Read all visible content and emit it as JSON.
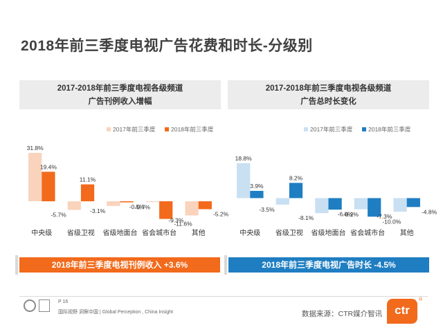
{
  "page_title": "2018年前三季度电视广告花费和时长-分级别",
  "panels": [
    {
      "heading_line1": "2017-2018年前三季度电视各级频道",
      "heading_line2": "广告刊例收入增幅"
    },
    {
      "heading_line1": "2017-2018年前三季度电视各级频道",
      "heading_line2": "广告总时长变化"
    }
  ],
  "colors": {
    "orange_light": "#fad3bd",
    "orange_dark": "#f26a1b",
    "blue_light": "#c9dff2",
    "blue_dark": "#1f7ec2",
    "banner_orange": "#f26a1b",
    "banner_blue": "#1f7ec2"
  },
  "chart_data": [
    {
      "type": "bar",
      "categories": [
        "中央级",
        "省级卫视",
        "省级地面台",
        "省会城市台",
        "其他"
      ],
      "series": [
        {
          "name": "2017年前三季度",
          "values": [
            31.8,
            -5.7,
            -3.1,
            -0.5,
            -9.3
          ]
        },
        {
          "name": "2018年前三季度",
          "values": [
            19.4,
            11.1,
            -0.7,
            -11.6,
            -5.2
          ]
        }
      ],
      "value_labels": [
        [
          "31.8%",
          "-5.7%",
          "-3.1%",
          "-0.5%",
          "-9.3%"
        ],
        [
          "19.4%",
          "11.1%",
          "-0.7%",
          "-11.6%",
          "-5.2%"
        ]
      ],
      "ylim": [
        -15,
        35
      ],
      "legend": "top-right"
    },
    {
      "type": "bar",
      "categories": [
        "中央级",
        "省级卫视",
        "省级地面台",
        "省会城市台",
        "其他"
      ],
      "series": [
        {
          "name": "2017年前三季度",
          "values": [
            18.8,
            -3.5,
            -8.1,
            -6.0,
            -7.3
          ]
        },
        {
          "name": "2018年前三季度",
          "values": [
            3.9,
            8.2,
            -6.2,
            -10.0,
            -4.8
          ]
        }
      ],
      "value_labels": [
        [
          "18.8%",
          "-3.5%",
          "-8.1%",
          "-6.0%",
          "-7.3%"
        ],
        [
          "3.9%",
          "8.2%",
          "-6.2%",
          "-10.0%",
          "-4.8%"
        ]
      ],
      "ylim": [
        -14,
        24
      ],
      "legend": "top-right"
    }
  ],
  "banners": {
    "left": "2018年前三季度电视刊例收入 +3.6%",
    "right": "2018年前三季度电视广告时长 -4.5%"
  },
  "footer": {
    "page": "P 16",
    "tagline": "国际视野  洞察中国 | Global Perception , China Insight",
    "source": "数据来源：CTR媒介智讯",
    "logo": "ctr",
    "registered": "®"
  }
}
